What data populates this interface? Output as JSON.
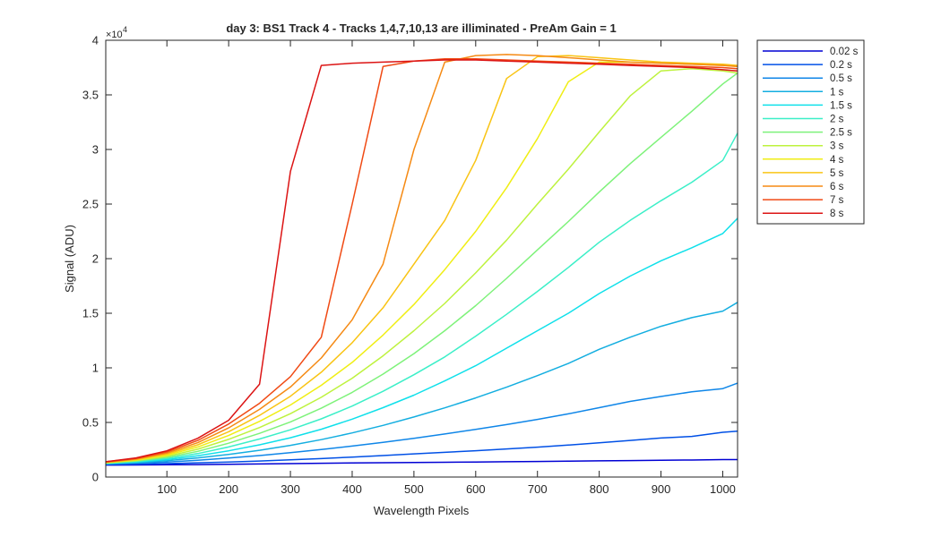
{
  "chart_data": {
    "type": "line",
    "title": "day 3: BS1  Track 4 - Tracks 1,4,7,10,13 are illiminated - PreAm Gain = 1",
    "xlabel": "Wavelength Pixels",
    "ylabel": "Signal (ADU)",
    "y_exponent_base": "×10",
    "y_exponent_power": "4",
    "xlim": [
      1,
      1024
    ],
    "ylim": [
      0,
      40000
    ],
    "xticks": [
      100,
      200,
      300,
      400,
      500,
      600,
      700,
      800,
      900,
      1000
    ],
    "xtick_labels": [
      "100",
      "200",
      "300",
      "400",
      "500",
      "600",
      "700",
      "800",
      "900",
      "1000"
    ],
    "yticks": [
      0,
      5000,
      10000,
      15000,
      20000,
      25000,
      30000,
      35000,
      40000
    ],
    "ytick_labels": [
      "0",
      "0.5",
      "1",
      "1.5",
      "2",
      "2.5",
      "3",
      "3.5",
      "4"
    ],
    "grid": false,
    "legend_position": "outside-right-top",
    "x": [
      1,
      50,
      100,
      150,
      200,
      250,
      300,
      350,
      400,
      450,
      500,
      550,
      600,
      650,
      700,
      750,
      800,
      850,
      900,
      950,
      1000,
      1024
    ],
    "series": [
      {
        "name": "0.02 s",
        "color": "#0000d4",
        "values": [
          1100,
          1110,
          1120,
          1140,
          1170,
          1200,
          1230,
          1260,
          1290,
          1310,
          1330,
          1350,
          1380,
          1400,
          1430,
          1450,
          1480,
          1510,
          1540,
          1560,
          1600,
          1600
        ]
      },
      {
        "name": "0.2 s",
        "color": "#0050e6",
        "values": [
          1150,
          1180,
          1230,
          1300,
          1380,
          1470,
          1570,
          1690,
          1830,
          1970,
          2120,
          2260,
          2410,
          2570,
          2740,
          2930,
          3130,
          3350,
          3570,
          3720,
          4100,
          4200
        ]
      },
      {
        "name": "0.5 s",
        "color": "#0f86e8",
        "values": [
          1200,
          1270,
          1380,
          1540,
          1740,
          1970,
          2230,
          2520,
          2840,
          3180,
          3550,
          3940,
          4360,
          4800,
          5280,
          5790,
          6350,
          6930,
          7380,
          7800,
          8100,
          8600
        ]
      },
      {
        "name": "1 s",
        "color": "#14aee0",
        "values": [
          1200,
          1320,
          1500,
          1750,
          2070,
          2450,
          2900,
          3430,
          4040,
          4730,
          5500,
          6340,
          7250,
          8230,
          9290,
          10400,
          11700,
          12800,
          13800,
          14600,
          15200,
          16000
        ]
      },
      {
        "name": "1.5 s",
        "color": "#0fe0ea",
        "values": [
          1250,
          1380,
          1600,
          1950,
          2400,
          2950,
          3600,
          4380,
          5300,
          6350,
          7500,
          8800,
          10200,
          11800,
          13400,
          15000,
          16800,
          18400,
          19800,
          21000,
          22300,
          23700
        ]
      },
      {
        "name": "2 s",
        "color": "#3cefc8",
        "values": [
          1250,
          1420,
          1700,
          2150,
          2750,
          3480,
          4330,
          5330,
          6500,
          7850,
          9370,
          11000,
          12900,
          14900,
          17000,
          19200,
          21500,
          23500,
          25300,
          27000,
          29000,
          31500
        ]
      },
      {
        "name": "2.5 s",
        "color": "#7ef27a",
        "values": [
          1300,
          1470,
          1800,
          2350,
          3100,
          4000,
          5050,
          6300,
          7750,
          9430,
          11300,
          13400,
          15700,
          18200,
          20800,
          23400,
          26100,
          28700,
          31100,
          33500,
          36000,
          37000
        ]
      },
      {
        "name": "3 s",
        "color": "#bef23e",
        "values": [
          1300,
          1520,
          1900,
          2550,
          3450,
          4530,
          5800,
          7300,
          9050,
          11100,
          13400,
          15900,
          18700,
          21700,
          25000,
          28200,
          31600,
          34900,
          37200,
          37400,
          37200,
          37000
        ]
      },
      {
        "name": "4 s",
        "color": "#f0ee14",
        "values": [
          1300,
          1560,
          2000,
          2750,
          3800,
          5100,
          6600,
          8400,
          10500,
          13000,
          15800,
          19000,
          22500,
          26500,
          31000,
          36200,
          38000,
          38000,
          37900,
          37800,
          37700,
          37600
        ]
      },
      {
        "name": "5 s",
        "color": "#f9c414",
        "values": [
          1350,
          1600,
          2100,
          2950,
          4150,
          5650,
          7400,
          9600,
          12300,
          15500,
          19500,
          23500,
          29000,
          36500,
          38500,
          38600,
          38400,
          38200,
          38000,
          37900,
          37800,
          37700
        ]
      },
      {
        "name": "6 s",
        "color": "#f58a14",
        "values": [
          1350,
          1650,
          2200,
          3150,
          4500,
          6200,
          8250,
          10900,
          14400,
          19500,
          30000,
          38000,
          38600,
          38700,
          38600,
          38400,
          38200,
          38000,
          37900,
          37800,
          37700,
          37600
        ]
      },
      {
        "name": "7 s",
        "color": "#f04a14",
        "values": [
          1400,
          1700,
          2300,
          3350,
          4850,
          6750,
          9200,
          12800,
          25000,
          37600,
          38100,
          38300,
          38300,
          38200,
          38100,
          38000,
          37900,
          37800,
          37700,
          37600,
          37500,
          37400
        ]
      },
      {
        "name": "8 s",
        "color": "#dc1414",
        "values": [
          1400,
          1750,
          2400,
          3550,
          5200,
          8500,
          28000,
          37700,
          37900,
          38000,
          38100,
          38200,
          38200,
          38100,
          38000,
          37900,
          37800,
          37700,
          37600,
          37500,
          37300,
          37200
        ]
      }
    ]
  }
}
